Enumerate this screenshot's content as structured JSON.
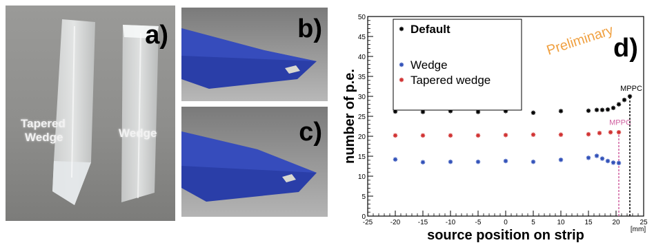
{
  "panels": {
    "a": {
      "tag": "a)",
      "labels": {
        "tapered_line1": "Tapered",
        "tapered_line2": "Wedge",
        "wedge": "Wedge"
      }
    },
    "b": {
      "tag": "b)"
    },
    "c": {
      "tag": "c)"
    },
    "d": {
      "tag": "d)",
      "watermark": "Preliminary"
    }
  },
  "colors": {
    "default": "#000000",
    "wedge": "#3050b8",
    "tapered": "#d03030",
    "mppc_marker_default": "#000000",
    "mppc_marker_tapered": "#d060a0",
    "watermark": "#f0a040",
    "render_bar": "#2a3ea8"
  },
  "chart_data": {
    "type": "scatter",
    "xlabel": "source position on strip",
    "xunit": "[mm]",
    "ylabel": "number of p.e.",
    "xlim": [
      -25,
      25
    ],
    "ylim": [
      0,
      50
    ],
    "xticks": [
      -25,
      -20,
      -15,
      -10,
      -5,
      0,
      5,
      10,
      15,
      20,
      25
    ],
    "yticks": [
      0,
      5,
      10,
      15,
      20,
      25,
      30,
      35,
      40,
      45,
      50
    ],
    "legend_position": "top-left",
    "series": [
      {
        "name": "Default",
        "color": "#000000",
        "points": [
          [
            -20,
            26.2
          ],
          [
            -15,
            26.1
          ],
          [
            -10,
            26.3
          ],
          [
            -5,
            26.1
          ],
          [
            0,
            26.3
          ],
          [
            5,
            25.9
          ],
          [
            10,
            26.3
          ],
          [
            15,
            26.4
          ],
          [
            16.5,
            26.6
          ],
          [
            17.5,
            26.6
          ],
          [
            18.5,
            26.7
          ],
          [
            19.5,
            27.1
          ],
          [
            20.5,
            28.0
          ],
          [
            21.5,
            29.1
          ],
          [
            22.5,
            30.0
          ]
        ]
      },
      {
        "name": "Wedge",
        "color": "#3050b8",
        "points": [
          [
            -20,
            14.2
          ],
          [
            -15,
            13.5
          ],
          [
            -10,
            13.6
          ],
          [
            -5,
            13.6
          ],
          [
            0,
            13.8
          ],
          [
            5,
            13.6
          ],
          [
            10,
            14.1
          ],
          [
            15,
            14.6
          ],
          [
            16.5,
            15.1
          ],
          [
            17.5,
            14.4
          ],
          [
            18.5,
            13.8
          ],
          [
            19.5,
            13.4
          ],
          [
            20.5,
            13.3
          ]
        ]
      },
      {
        "name": "Tapered wedge",
        "color": "#d03030",
        "points": [
          [
            -20,
            20.2
          ],
          [
            -15,
            20.2
          ],
          [
            -10,
            20.2
          ],
          [
            -5,
            20.2
          ],
          [
            0,
            20.3
          ],
          [
            5,
            20.4
          ],
          [
            10,
            20.4
          ],
          [
            15,
            20.5
          ],
          [
            17,
            20.8
          ],
          [
            19,
            21.0
          ],
          [
            20.5,
            21.0
          ]
        ]
      }
    ],
    "annotations": [
      {
        "text": "MPPC",
        "x": 22.5,
        "y": 31,
        "color": "#000000"
      },
      {
        "text": "MPPC",
        "x": 20.5,
        "y": 22.5,
        "color": "#d060a0"
      }
    ],
    "vlines": [
      {
        "x": 22.5,
        "y_top": 30,
        "color": "#000000"
      },
      {
        "x": 20.5,
        "y_top": 21,
        "color": "#d060a0"
      }
    ]
  }
}
